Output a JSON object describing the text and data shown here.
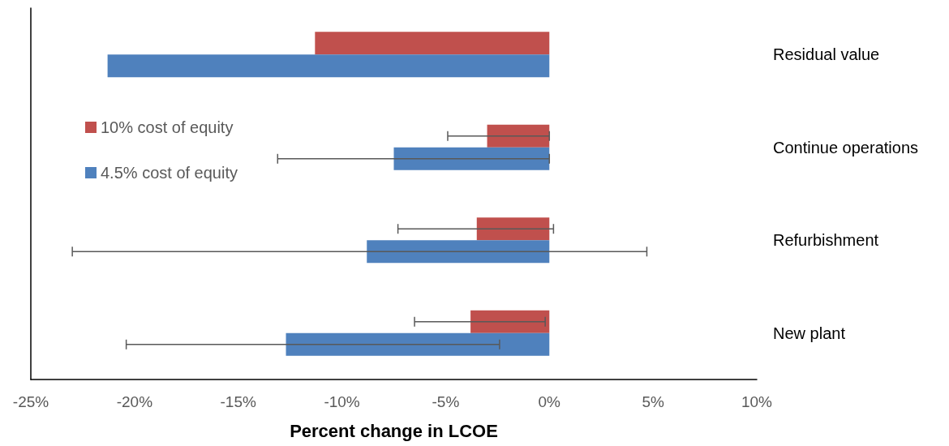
{
  "chart_data": {
    "type": "bar",
    "orientation": "horizontal",
    "xlabel": "Percent change in LCOE",
    "categories": [
      "Residual value",
      "Continue operations",
      "Refurbishment",
      "New plant"
    ],
    "series": [
      {
        "name": "10% cost of equity",
        "color": "#c0504d",
        "values": [
          -11.3,
          -3.0,
          -3.5,
          -3.8
        ],
        "errors": [
          null,
          [
            -4.9,
            0
          ],
          [
            -7.3,
            0.2
          ],
          [
            -6.5,
            -0.2
          ]
        ]
      },
      {
        "name": "4.5% cost of equity",
        "color": "#4f81bd",
        "values": [
          -21.3,
          -7.5,
          -8.8,
          -12.7
        ],
        "errors": [
          null,
          [
            -13.1,
            0
          ],
          [
            -23.0,
            4.7
          ],
          [
            -20.4,
            -2.4
          ]
        ]
      }
    ],
    "xlim": [
      -25,
      10
    ],
    "xticks": [
      {
        "value": -25,
        "label": "-25%"
      },
      {
        "value": -20,
        "label": "-20%"
      },
      {
        "value": -15,
        "label": "-15%"
      },
      {
        "value": -10,
        "label": "-10%"
      },
      {
        "value": -5,
        "label": "-5%"
      },
      {
        "value": 0,
        "label": "0%"
      },
      {
        "value": 5,
        "label": "5%"
      },
      {
        "value": 10,
        "label": "10%"
      }
    ],
    "grid": false,
    "legend": "top left"
  }
}
